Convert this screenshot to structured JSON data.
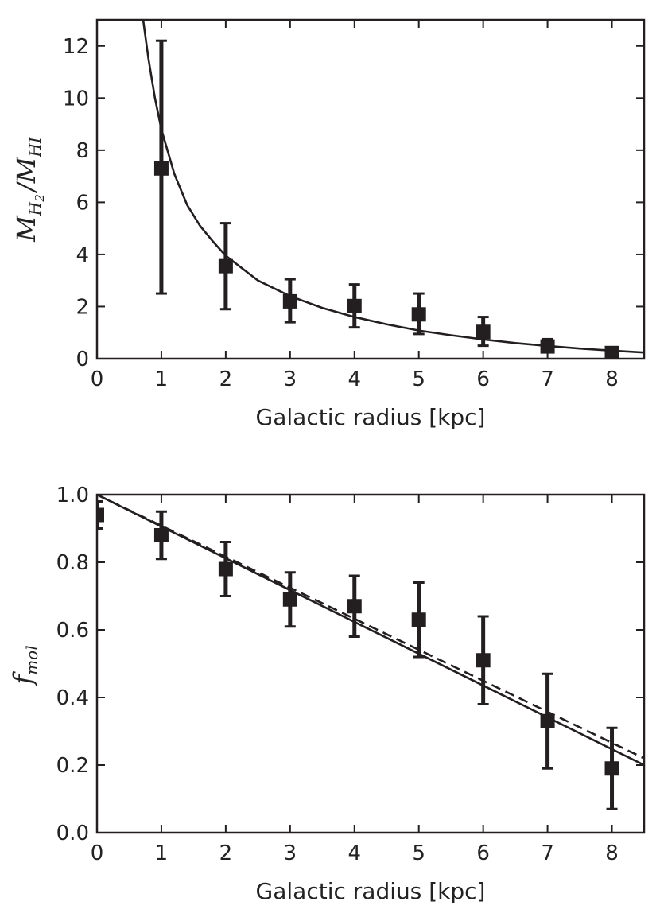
{
  "chart_data": [
    {
      "type": "scatter",
      "xlabel": "Galactic radius [kpc]",
      "ylabel": {
        "main": "M",
        "sub_num": "H",
        "sub_num_sub": "2",
        "sep": "/",
        "main2": "M",
        "sub_den": "HI"
      },
      "xlim": [
        0,
        8.5
      ],
      "ylim": [
        0,
        13
      ],
      "xticks": [
        "0",
        "1",
        "2",
        "3",
        "4",
        "5",
        "6",
        "7",
        "8"
      ],
      "yticks": [
        "0",
        "2",
        "4",
        "6",
        "8",
        "10",
        "12"
      ],
      "grid": false,
      "series": [
        {
          "kind": "points-with-errorbars",
          "x": [
            1,
            2,
            3,
            4,
            5,
            6,
            7,
            8
          ],
          "y": [
            7.3,
            3.55,
            2.2,
            2.02,
            1.7,
            1.03,
            0.47,
            0.22
          ],
          "y_low": [
            2.5,
            1.9,
            1.4,
            1.2,
            0.95,
            0.5,
            0.25,
            0.12
          ],
          "y_high": [
            12.2,
            5.2,
            3.05,
            2.85,
            2.5,
            1.6,
            0.75,
            0.32
          ]
        },
        {
          "kind": "fit-curve",
          "style": "solid",
          "x": [
            0.6,
            0.7,
            0.8,
            0.9,
            1.0,
            1.2,
            1.4,
            1.6,
            1.8,
            2.0,
            2.5,
            3.0,
            3.5,
            4.0,
            4.5,
            5.0,
            5.5,
            6.0,
            6.5,
            7.0,
            7.5,
            8.0,
            8.5
          ],
          "y": [
            15.7,
            13.3,
            11.5,
            10.0,
            8.8,
            7.1,
            5.9,
            5.1,
            4.5,
            3.95,
            3.0,
            2.4,
            1.95,
            1.6,
            1.32,
            1.08,
            0.9,
            0.74,
            0.6,
            0.49,
            0.39,
            0.31,
            0.24
          ]
        }
      ]
    },
    {
      "type": "scatter",
      "xlabel": "Galactic radius [kpc]",
      "ylabel": {
        "main": "f",
        "sub": "mol"
      },
      "xlim": [
        0,
        8.5
      ],
      "ylim": [
        0,
        1
      ],
      "xticks": [
        "0",
        "1",
        "2",
        "3",
        "4",
        "5",
        "6",
        "7",
        "8"
      ],
      "yticks": [
        "0.0",
        "0.2",
        "0.4",
        "0.6",
        "0.8",
        "1.0"
      ],
      "grid": false,
      "series": [
        {
          "kind": "points-with-errorbars",
          "x": [
            0,
            1,
            2,
            3,
            4,
            5,
            6,
            7,
            8
          ],
          "y": [
            0.94,
            0.88,
            0.78,
            0.69,
            0.67,
            0.63,
            0.51,
            0.33,
            0.19
          ],
          "y_low": [
            0.9,
            0.81,
            0.7,
            0.61,
            0.58,
            0.52,
            0.38,
            0.19,
            0.07
          ],
          "y_high": [
            0.98,
            0.95,
            0.86,
            0.77,
            0.76,
            0.74,
            0.64,
            0.47,
            0.31
          ]
        },
        {
          "kind": "fit-line",
          "style": "solid",
          "x": [
            0,
            8.5
          ],
          "y": [
            1.0,
            0.2
          ]
        },
        {
          "kind": "fit-line",
          "style": "dashed",
          "x": [
            0,
            8.5
          ],
          "y": [
            1.0,
            0.22
          ]
        }
      ]
    }
  ]
}
